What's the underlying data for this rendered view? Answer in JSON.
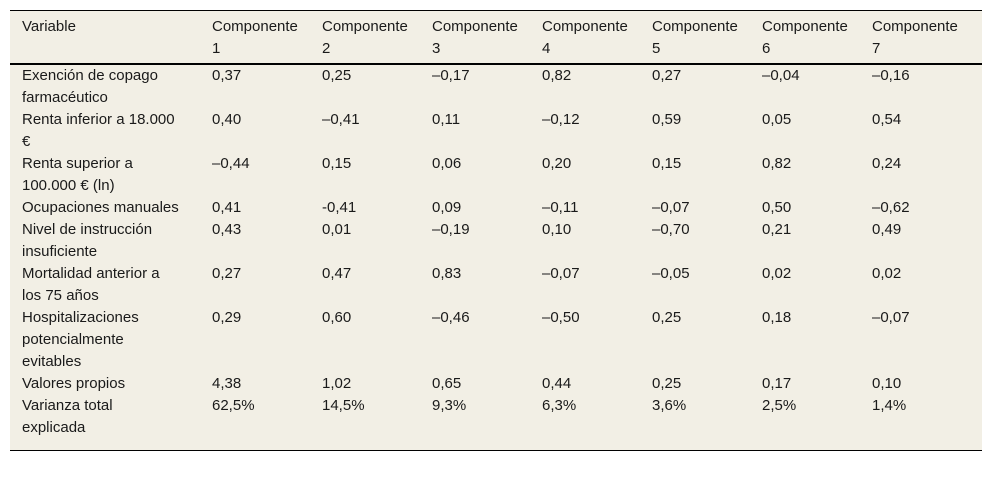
{
  "colors": {
    "page_background": "#ffffff",
    "table_background": "#f2efe5",
    "text": "#1a1a1a",
    "rule": "#010101"
  },
  "table": {
    "columns": [
      {
        "line1": "Variable",
        "line2": ""
      },
      {
        "line1": "Componente",
        "line2": "1"
      },
      {
        "line1": "Componente",
        "line2": "2"
      },
      {
        "line1": "Componente",
        "line2": "3"
      },
      {
        "line1": "Componente",
        "line2": "4"
      },
      {
        "line1": "Componente",
        "line2": "5"
      },
      {
        "line1": "Componente",
        "line2": "6"
      },
      {
        "line1": "Componente",
        "line2": "7"
      }
    ],
    "rows": [
      {
        "label": "Exención de copago farmacéutico",
        "values": [
          "0,37",
          "0,25",
          "–0,17",
          "0,82",
          "0,27",
          "–0,04",
          "–0,16"
        ]
      },
      {
        "label": "Renta inferior a 18.000 €",
        "values": [
          "0,40",
          "–0,41",
          "0,11",
          "–0,12",
          "0,59",
          "0,05",
          "0,54"
        ]
      },
      {
        "label": "Renta superior a 100.000 € (ln)",
        "values": [
          "–0,44",
          "0,15",
          "0,06",
          "0,20",
          "0,15",
          "0,82",
          "0,24"
        ]
      },
      {
        "label": "Ocupaciones manuales",
        "values": [
          "0,41",
          "-0,41",
          "0,09",
          "–0,11",
          "–0,07",
          "0,50",
          "–0,62"
        ]
      },
      {
        "label": "Nivel de instrucción insuficiente",
        "values": [
          "0,43",
          "0,01",
          "–0,19",
          "0,10",
          "–0,70",
          "0,21",
          "0,49"
        ]
      },
      {
        "label": "Mortalidad anterior a los 75 años",
        "values": [
          "0,27",
          "0,47",
          "0,83",
          "–0,07",
          "–0,05",
          "0,02",
          "0,02"
        ]
      },
      {
        "label": "Hospitalizaciones potencialmente evitables",
        "values": [
          "0,29",
          "0,60",
          "–0,46",
          "–0,50",
          "0,25",
          "0,18",
          "–0,07"
        ]
      },
      {
        "label": "Valores propios",
        "values": [
          "4,38",
          "1,02",
          "0,65",
          "0,44",
          "0,25",
          "0,17",
          "0,10"
        ]
      },
      {
        "label": "Varianza total explicada",
        "values": [
          "62,5%",
          "14,5%",
          "9,3%",
          "6,3%",
          "3,6%",
          "2,5%",
          "1,4%"
        ]
      }
    ]
  }
}
